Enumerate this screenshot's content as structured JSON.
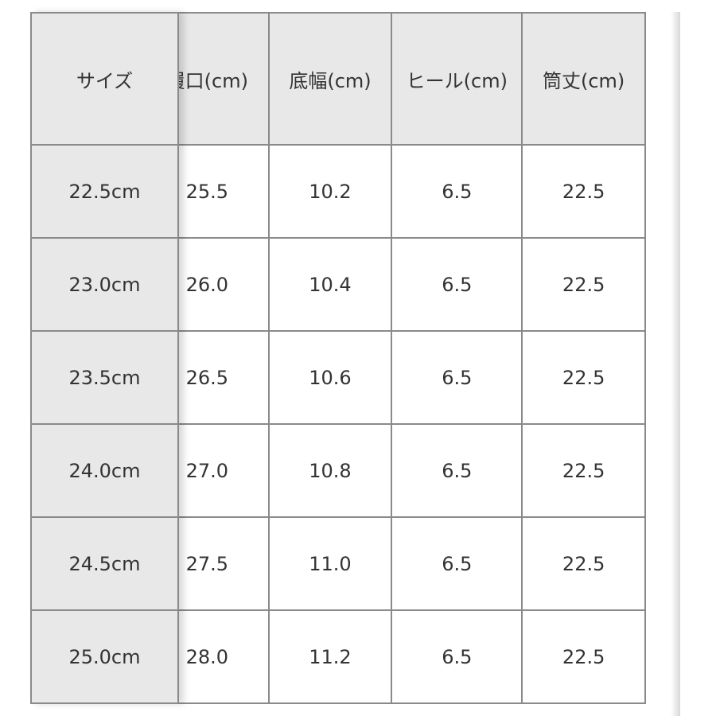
{
  "headers": {
    "size": "サイズ",
    "cols": [
      "履口(cm)",
      "底幅(cm)",
      "ヒール(cm)",
      "筒丈(cm)"
    ]
  },
  "rows": [
    {
      "size": "22.5cm",
      "vals": [
        "25.5",
        "10.2",
        "6.5",
        "22.5"
      ]
    },
    {
      "size": "23.0cm",
      "vals": [
        "26.0",
        "10.4",
        "6.5",
        "22.5"
      ]
    },
    {
      "size": "23.5cm",
      "vals": [
        "26.5",
        "10.6",
        "6.5",
        "22.5"
      ]
    },
    {
      "size": "24.0cm",
      "vals": [
        "27.0",
        "10.8",
        "6.5",
        "22.5"
      ]
    },
    {
      "size": "24.5cm",
      "vals": [
        "27.5",
        "11.0",
        "6.5",
        "22.5"
      ]
    },
    {
      "size": "25.0cm",
      "vals": [
        "28.0",
        "11.2",
        "6.5",
        "22.5"
      ]
    }
  ]
}
